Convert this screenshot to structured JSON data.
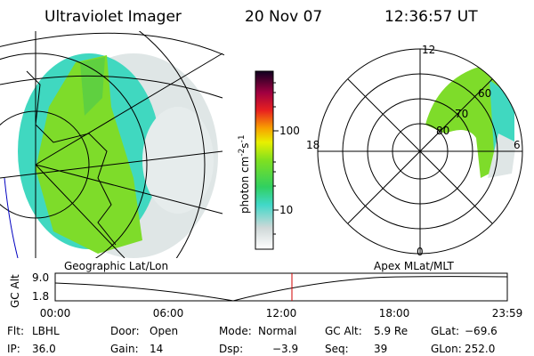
{
  "header": {
    "title": "Ultraviolet Imager",
    "date": "20 Nov 07",
    "time": "12:36:57 UT"
  },
  "colorbar": {
    "label": "photon cm",
    "exp1": "-2",
    "unit2": "s",
    "exp2": "-1",
    "ticks": [
      "100",
      "10"
    ]
  },
  "polar": {
    "hour_labels": [
      "12",
      "18",
      "6",
      "0"
    ],
    "lat_labels": [
      "60",
      "70",
      "80"
    ]
  },
  "orbit": {
    "left_caption": "Geographic Lat/Lon",
    "right_caption": "Apex MLat/MLT",
    "y_label": "GC Alt",
    "y_ticks": [
      "9.0",
      "1.8"
    ],
    "x_ticks": [
      "00:00",
      "06:00",
      "12:00",
      "18:00",
      "23:59"
    ]
  },
  "footer": {
    "rows": [
      [
        [
          "Flt:",
          "LBHL"
        ],
        [
          "Door:",
          "Open"
        ],
        [
          "Mode:",
          "Normal"
        ],
        [
          "GC Alt:",
          "5.9 Re"
        ],
        [
          "GLat:",
          "−69.6"
        ]
      ],
      [
        [
          "IP:",
          "36.0"
        ],
        [
          "Gain:",
          "14"
        ],
        [
          "Dsp:",
          "−3.9"
        ],
        [
          "Seq:",
          "39"
        ],
        [
          "GLon:",
          "252.0"
        ]
      ]
    ]
  }
}
